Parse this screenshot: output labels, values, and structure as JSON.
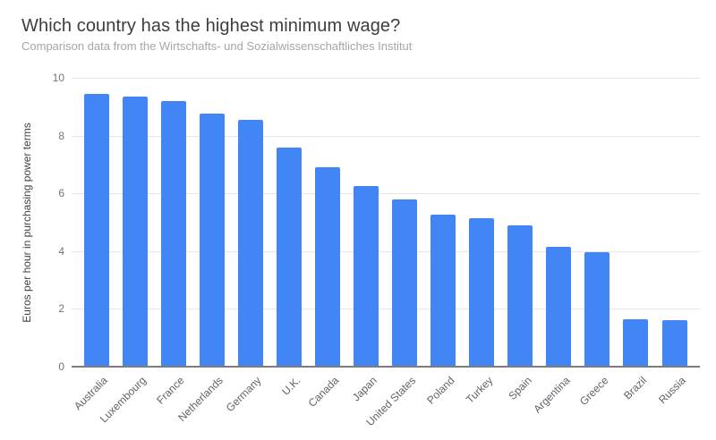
{
  "header": {
    "title": "Which country has the highest minimum wage?",
    "subtitle": "Comparison data from the Wirtschafts- und Sozialwissenschaftliches Institut"
  },
  "chart_data": {
    "type": "bar",
    "title": "Which country has the highest minimum wage?",
    "subtitle": "Comparison data from the Wirtschafts- und Sozialwissenschaftliches Institut",
    "categories": [
      "Australia",
      "Luxembourg",
      "France",
      "Netherlands",
      "Germany",
      "U.K.",
      "Canada",
      "Japan",
      "United States",
      "Poland",
      "Turkey",
      "Spain",
      "Argentina",
      "Greece",
      "Brazil",
      "Russia"
    ],
    "values": [
      9.45,
      9.35,
      9.2,
      8.75,
      8.55,
      7.6,
      6.9,
      6.25,
      5.8,
      5.25,
      5.15,
      4.9,
      4.15,
      3.95,
      1.65,
      1.6
    ],
    "xlabel": "",
    "ylabel": "Euros per hour in purchasing power terms",
    "ylim": [
      0,
      10
    ],
    "yticks": [
      0,
      2,
      4,
      6,
      8,
      10
    ],
    "grid": true,
    "legend": "none",
    "bar_color": "#4285f4",
    "gridline_color": "#e6e6e6",
    "axis_line_color": "#7d7d7d",
    "title_color": "#3d3d3d",
    "subtitle_color": "#a6a6a6",
    "tick_label_color": "#757575",
    "category_label_color": "#5f6368"
  }
}
